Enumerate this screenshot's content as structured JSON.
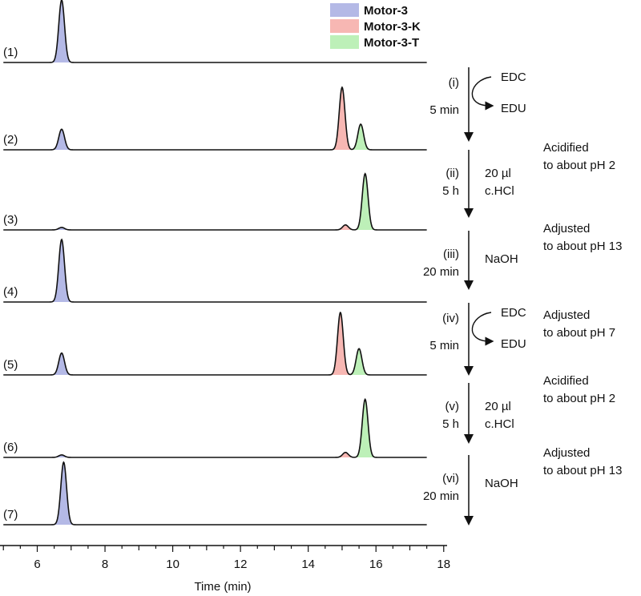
{
  "chart_data": {
    "type": "line",
    "title": "",
    "xlabel": "Time (min)",
    "ylabel": "",
    "xlim": [
      5,
      17.5
    ],
    "xticks": [
      "6",
      "8",
      "10",
      "12",
      "14",
      "16",
      "18"
    ],
    "legend": {
      "placement": "top-center",
      "items": [
        {
          "label": "Motor-3",
          "color": "#b4b9e6"
        },
        {
          "label": "Motor-3-K",
          "color": "#f7b7b3"
        },
        {
          "label": "Motor-3-T",
          "color": "#bdf0b8"
        }
      ]
    },
    "peak_width": 0.085,
    "traces": [
      {
        "label": "(1)",
        "peaks": [
          {
            "species": "Motor-3",
            "rt": 6.72,
            "height": 1.0
          }
        ]
      },
      {
        "label": "(2)",
        "peaks": [
          {
            "species": "Motor-3",
            "rt": 6.72,
            "height": 0.33
          },
          {
            "species": "Motor-3-K",
            "rt": 15.0,
            "height": 1.0
          },
          {
            "species": "Motor-3-T",
            "rt": 15.55,
            "height": 0.41
          }
        ]
      },
      {
        "label": "(3)",
        "peaks": [
          {
            "species": "Motor-3",
            "rt": 6.72,
            "height": 0.04
          },
          {
            "species": "Motor-3-K",
            "rt": 15.1,
            "height": 0.08
          },
          {
            "species": "Motor-3-T",
            "rt": 15.68,
            "height": 0.9
          }
        ]
      },
      {
        "label": "(4)",
        "peaks": [
          {
            "species": "Motor-3",
            "rt": 6.72,
            "height": 1.0
          }
        ]
      },
      {
        "label": "(5)",
        "peaks": [
          {
            "species": "Motor-3",
            "rt": 6.72,
            "height": 0.35
          },
          {
            "species": "Motor-3-K",
            "rt": 14.95,
            "height": 1.0
          },
          {
            "species": "Motor-3-T",
            "rt": 15.5,
            "height": 0.42
          }
        ]
      },
      {
        "label": "(6)",
        "peaks": [
          {
            "species": "Motor-3",
            "rt": 6.72,
            "height": 0.04
          },
          {
            "species": "Motor-3-K",
            "rt": 15.1,
            "height": 0.08
          },
          {
            "species": "Motor-3-T",
            "rt": 15.68,
            "height": 0.93
          }
        ]
      },
      {
        "label": "(7)",
        "peaks": [
          {
            "species": "Motor-3",
            "rt": 6.78,
            "height": 1.0
          }
        ]
      }
    ],
    "steps": [
      {
        "label": "(i)",
        "time": "5 min",
        "above": "EDC",
        "below": "EDU",
        "note": ""
      },
      {
        "label": "(ii)",
        "time": "5 h",
        "reagent1": "20 µl",
        "reagent2": "c.HCl",
        "note1": "Acidified",
        "note2": "to about pH 2"
      },
      {
        "label": "(iii)",
        "time": "20 min",
        "reagent1": "NaOH",
        "note1": "Adjusted",
        "note2": "to about pH 13"
      },
      {
        "label": "(iv)",
        "time": "5 min",
        "above": "EDC",
        "below": "EDU",
        "note1": "Adjusted",
        "note2": "to about pH 7"
      },
      {
        "label": "(v)",
        "time": "5 h",
        "reagent1": "20 µl",
        "reagent2": "c.HCl",
        "note1": "Acidified",
        "note2": "to about pH 2"
      },
      {
        "label": "(vi)",
        "time": "20 min",
        "reagent1": "NaOH",
        "note1": "Adjusted",
        "note2": "to about pH 13"
      }
    ]
  }
}
